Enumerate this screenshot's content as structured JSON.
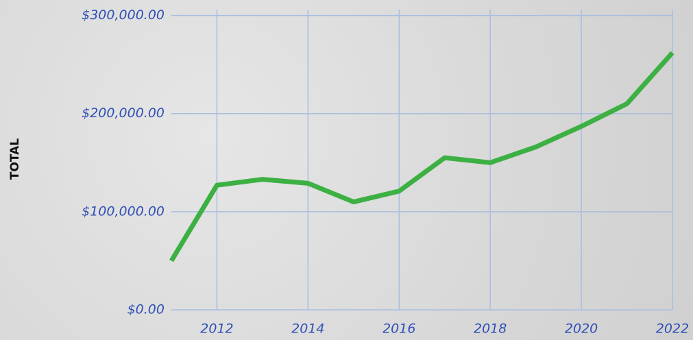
{
  "chart_data": {
    "type": "line",
    "ylabel": "TOTAL",
    "x": [
      2011,
      2012,
      2013,
      2014,
      2015,
      2016,
      2017,
      2018,
      2019,
      2020,
      2021,
      2022
    ],
    "series": [
      {
        "name": "Total",
        "color": "#3db043",
        "values": [
          50000,
          127000,
          133000,
          129000,
          110000,
          121000,
          155000,
          150000,
          166000,
          187000,
          210000,
          262000
        ]
      }
    ],
    "xlim": [
      2011,
      2022
    ],
    "xticks": [
      2012,
      2014,
      2016,
      2018,
      2020,
      2022
    ],
    "ylim": [
      0,
      306000
    ],
    "yticks": [
      {
        "value": 0,
        "label": "$0.00"
      },
      {
        "value": 100000,
        "label": "$100,000.00"
      },
      {
        "value": 200000,
        "label": "$200,000.00"
      },
      {
        "value": 300000,
        "label": "$300,000.00"
      }
    ],
    "grid": true
  }
}
